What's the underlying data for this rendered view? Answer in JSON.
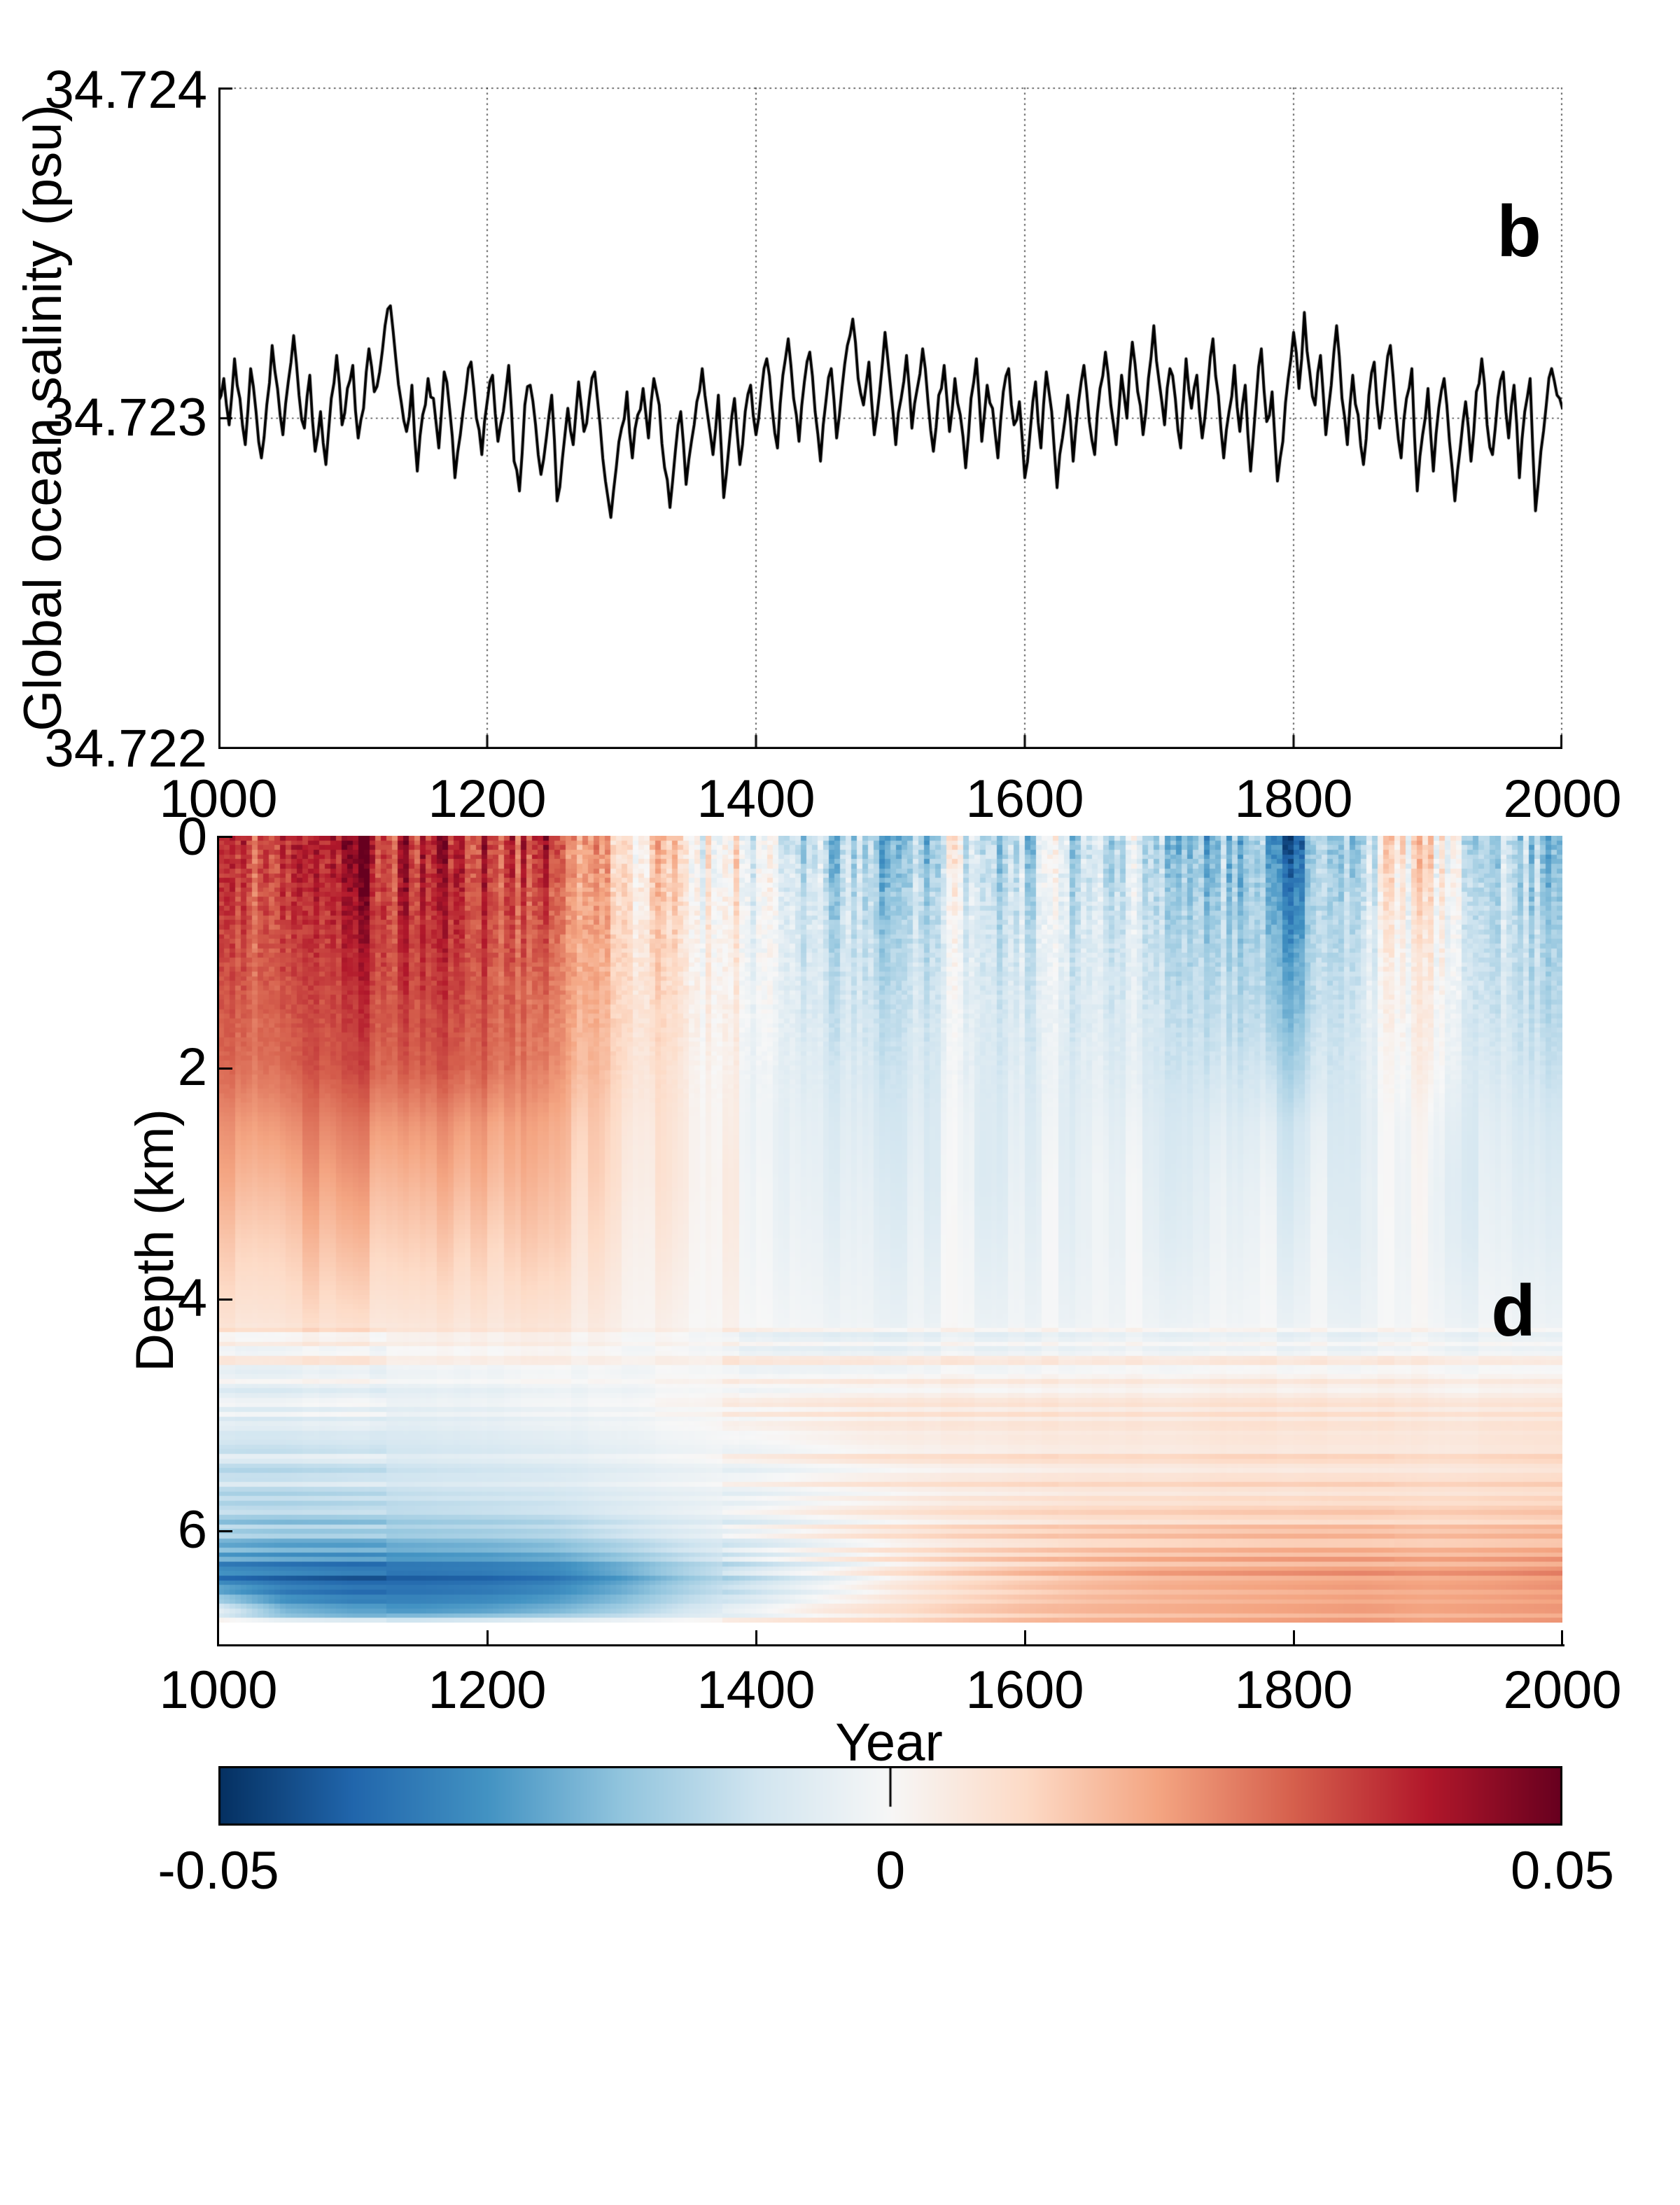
{
  "figure": {
    "background": "#ffffff"
  },
  "panel_b": {
    "label": "b",
    "ylabel": "Global ocean salinity (psu)",
    "yticklabels": [
      "34.724",
      "34.723",
      "34.722"
    ],
    "xticklabels": [
      "1000",
      "1200",
      "1400",
      "1600",
      "1800",
      "2000"
    ],
    "chart_data": {
      "type": "line",
      "title": "",
      "xlabel": "",
      "ylabel": "Global ocean salinity (psu)",
      "xlim": [
        1000,
        2000
      ],
      "ylim": [
        34.722,
        34.724
      ],
      "yticks": [
        34.722,
        34.723,
        34.724
      ],
      "xticks": [
        1000,
        1200,
        1400,
        1600,
        1800,
        2000
      ],
      "grid": "dotted",
      "line_color": "#000000",
      "mean_psu": 34.723,
      "x_start": 1000,
      "x_step": 4,
      "offset_unit_psu": 0.001,
      "values_offset": [
        0.05,
        0.12,
        -0.02,
        0.18,
        0.06,
        -0.08,
        0.15,
        0.02,
        -0.12,
        0.04,
        0.22,
        0.09,
        -0.05,
        0.11,
        0.25,
        0.07,
        -0.03,
        0.13,
        -0.1,
        0.02,
        -0.14,
        0.06,
        0.19,
        -0.02,
        0.09,
        0.16,
        -0.06,
        0.03,
        0.21,
        0.08,
        0.14,
        0.28,
        0.34,
        0.18,
        0.05,
        -0.04,
        0.1,
        -0.16,
        0.01,
        0.12,
        0.06,
        -0.09,
        0.14,
        0.03,
        -0.18,
        -0.05,
        0.08,
        0.17,
        0.0,
        -0.11,
        0.05,
        0.13,
        -0.07,
        0.02,
        0.16,
        -0.13,
        -0.22,
        0.04,
        0.1,
        -0.02,
        -0.17,
        -0.06,
        0.07,
        -0.25,
        -0.12,
        0.03,
        -0.08,
        0.11,
        -0.04,
        0.06,
        0.14,
        -0.02,
        -0.19,
        -0.3,
        -0.15,
        -0.03,
        0.08,
        -0.12,
        0.01,
        0.09,
        -0.06,
        0.12,
        0.04,
        -0.15,
        -0.27,
        -0.1,
        0.02,
        -0.2,
        -0.07,
        0.05,
        0.15,
        0.01,
        -0.11,
        0.07,
        -0.24,
        -0.08,
        0.06,
        -0.14,
        0.02,
        0.1,
        -0.05,
        0.08,
        0.18,
        0.03,
        -0.09,
        0.13,
        0.24,
        0.06,
        -0.07,
        0.11,
        0.2,
        0.02,
        -0.13,
        0.05,
        0.15,
        -0.06,
        0.09,
        0.22,
        0.3,
        0.12,
        0.04,
        0.17,
        -0.05,
        0.08,
        0.26,
        0.1,
        -0.08,
        0.06,
        0.19,
        -0.03,
        0.09,
        0.21,
        0.05,
        -0.1,
        0.07,
        0.16,
        -0.04,
        0.12,
        0.01,
        -0.15,
        0.06,
        0.18,
        -0.07,
        0.1,
        0.03,
        -0.12,
        0.08,
        0.15,
        -0.02,
        0.05,
        -0.18,
        -0.04,
        0.11,
        -0.09,
        0.14,
        0.02,
        -0.21,
        -0.06,
        0.07,
        -0.13,
        0.05,
        0.16,
        -0.01,
        -0.11,
        0.09,
        0.2,
        0.04,
        -0.08,
        0.13,
        0.0,
        0.23,
        0.08,
        -0.05,
        0.12,
        0.28,
        0.11,
        -0.02,
        0.15,
        0.06,
        -0.09,
        0.18,
        0.03,
        0.13,
        -0.06,
        0.09,
        0.24,
        0.07,
        -0.12,
        0.02,
        0.16,
        -0.04,
        0.1,
        -0.16,
        0.05,
        0.21,
        -0.01,
        0.08,
        -0.19,
        -0.07,
        0.12,
        0.26,
        0.09,
        0.32,
        0.14,
        0.04,
        0.19,
        -0.05,
        0.1,
        0.28,
        0.06,
        -0.08,
        0.13,
        0.01,
        -0.14,
        0.07,
        0.17,
        -0.03,
        0.11,
        0.22,
        0.02,
        -0.12,
        0.06,
        0.15,
        -0.22,
        -0.05,
        0.09,
        -0.16,
        0.03,
        0.12,
        -0.07,
        -0.25,
        -0.09,
        0.05,
        -0.13,
        0.08,
        0.18,
        -0.02,
        -0.11,
        0.06,
        0.14,
        -0.06,
        0.1,
        -0.18,
        0.02,
        0.12,
        -0.28,
        -0.1,
        0.04,
        0.15,
        0.07,
        0.03
      ]
    }
  },
  "panel_d": {
    "label": "d",
    "ylabel": "Depth (km)",
    "xlabel": "Year",
    "yticklabels": [
      "0",
      "2",
      "4",
      "6"
    ],
    "xticklabels": [
      "1000",
      "1200",
      "1400",
      "1600",
      "1800",
      "2000"
    ],
    "chart_data": {
      "type": "heatmap",
      "xlabel": "Year",
      "ylabel": "Depth (km)",
      "xlim": [
        1000,
        2000
      ],
      "ylim_km": [
        0,
        7.0
      ],
      "data_depth_max_km": 6.8,
      "yticks_km": [
        0,
        2,
        4,
        6
      ],
      "xticks": [
        1000,
        1200,
        1400,
        1600,
        1800,
        2000
      ],
      "value_range": [
        -0.05,
        0.05
      ],
      "colormap": "RdBu_reversed",
      "years": [
        1000,
        1050,
        1100,
        1150,
        1200,
        1250,
        1300,
        1350,
        1400,
        1450,
        1500,
        1550,
        1600,
        1650,
        1700,
        1750,
        1800,
        1850,
        1900,
        1950,
        2000
      ],
      "depths_km": [
        0.1,
        0.5,
        1.0,
        1.5,
        2.0,
        2.5,
        3.0,
        3.5,
        4.2,
        4.8,
        5.2,
        5.7,
        6.1,
        6.4,
        6.7,
        6.8
      ],
      "values": [
        [
          0.036,
          0.038,
          0.042,
          0.044,
          0.038,
          0.03,
          0.016,
          0.008,
          0.002,
          -0.012,
          -0.016,
          -0.006,
          -0.01,
          -0.008,
          -0.014,
          -0.02,
          -0.032,
          -0.006,
          0.008,
          -0.014,
          -0.016
        ],
        [
          0.034,
          0.036,
          0.04,
          0.042,
          0.036,
          0.028,
          0.015,
          0.007,
          0.002,
          -0.01,
          -0.014,
          -0.005,
          -0.009,
          -0.007,
          -0.012,
          -0.018,
          -0.028,
          -0.005,
          0.006,
          -0.012,
          -0.015
        ],
        [
          0.032,
          0.034,
          0.037,
          0.039,
          0.034,
          0.026,
          0.014,
          0.006,
          0.001,
          -0.009,
          -0.012,
          -0.005,
          -0.008,
          -0.006,
          -0.011,
          -0.015,
          -0.024,
          -0.005,
          0.004,
          -0.011,
          -0.013
        ],
        [
          0.03,
          0.032,
          0.034,
          0.036,
          0.032,
          0.024,
          0.013,
          0.006,
          0.001,
          -0.008,
          -0.01,
          -0.004,
          -0.007,
          -0.006,
          -0.009,
          -0.013,
          -0.02,
          -0.004,
          0.003,
          -0.01,
          -0.012
        ],
        [
          0.028,
          0.03,
          0.032,
          0.033,
          0.03,
          0.022,
          0.012,
          0.005,
          0.0,
          -0.006,
          -0.008,
          -0.004,
          -0.006,
          -0.005,
          -0.008,
          -0.01,
          -0.014,
          -0.004,
          0.002,
          -0.008,
          -0.01
        ],
        [
          0.022,
          0.024,
          0.025,
          0.025,
          0.022,
          0.017,
          0.01,
          0.005,
          0.0,
          -0.004,
          -0.006,
          -0.003,
          -0.005,
          -0.004,
          -0.006,
          -0.007,
          -0.008,
          -0.004,
          -0.001,
          -0.006,
          -0.007
        ],
        [
          0.018,
          0.019,
          0.02,
          0.02,
          0.018,
          0.014,
          0.009,
          0.005,
          0.001,
          -0.003,
          -0.004,
          -0.003,
          -0.004,
          -0.003,
          -0.005,
          -0.005,
          -0.006,
          -0.003,
          -0.002,
          -0.005,
          -0.005
        ],
        [
          0.013,
          0.014,
          0.015,
          0.015,
          0.013,
          0.011,
          0.007,
          0.004,
          0.001,
          -0.002,
          -0.003,
          -0.002,
          -0.003,
          -0.003,
          -0.004,
          -0.004,
          -0.004,
          -0.003,
          -0.002,
          -0.004,
          -0.004
        ],
        [
          0.007,
          0.008,
          0.008,
          0.008,
          0.007,
          0.006,
          0.004,
          0.002,
          0.001,
          -0.001,
          -0.002,
          -0.001,
          -0.002,
          -0.002,
          -0.002,
          -0.002,
          -0.002,
          -0.002,
          -0.001,
          -0.002,
          -0.002
        ],
        [
          -0.004,
          -0.004,
          -0.003,
          -0.003,
          -0.003,
          -0.002,
          -0.001,
          0.001,
          0.002,
          0.003,
          0.004,
          0.004,
          0.004,
          0.004,
          0.004,
          0.005,
          0.005,
          0.005,
          0.004,
          0.004,
          0.005
        ],
        [
          -0.008,
          -0.008,
          -0.007,
          -0.007,
          -0.006,
          -0.005,
          -0.003,
          -0.001,
          0.001,
          0.003,
          0.005,
          0.005,
          0.006,
          0.006,
          0.006,
          0.007,
          0.007,
          0.007,
          0.006,
          0.007,
          0.008
        ],
        [
          -0.012,
          -0.012,
          -0.011,
          -0.01,
          -0.009,
          -0.008,
          -0.005,
          -0.003,
          -0.001,
          0.002,
          0.004,
          0.006,
          0.007,
          0.008,
          0.008,
          0.009,
          0.009,
          0.01,
          0.009,
          0.01,
          0.011
        ],
        [
          -0.02,
          -0.022,
          -0.022,
          -0.021,
          -0.02,
          -0.018,
          -0.013,
          -0.008,
          -0.004,
          0.001,
          0.005,
          0.008,
          0.01,
          0.012,
          0.013,
          0.014,
          0.015,
          0.015,
          0.014,
          0.015,
          0.016
        ],
        [
          -0.036,
          -0.038,
          -0.04,
          -0.04,
          -0.039,
          -0.036,
          -0.028,
          -0.018,
          -0.01,
          -0.003,
          0.005,
          0.01,
          0.014,
          0.017,
          0.019,
          0.02,
          0.021,
          0.022,
          0.021,
          0.022,
          0.024
        ],
        [
          -0.008,
          -0.026,
          -0.03,
          -0.03,
          -0.028,
          -0.024,
          -0.018,
          -0.01,
          -0.005,
          0.002,
          0.006,
          0.01,
          0.013,
          0.015,
          0.016,
          0.017,
          0.018,
          0.019,
          0.018,
          0.019,
          0.02
        ],
        [
          -0.002,
          -0.006,
          -0.008,
          -0.008,
          -0.006,
          -0.004,
          -0.002,
          0.0,
          0.002,
          0.004,
          0.006,
          0.009,
          0.012,
          0.014,
          0.015,
          0.016,
          0.017,
          0.018,
          0.017,
          0.018,
          0.019
        ]
      ],
      "texture": {
        "stripe_amp": 0.017,
        "stripe_depth_fade_km": 2.4,
        "mid_ghost_amp": 0.0038,
        "band_amp": 0.0062,
        "band_depth_start_km": 4.25
      }
    }
  },
  "colorbar": {
    "ticklabels": [
      "-0.05",
      "0",
      "0.05"
    ],
    "min": -0.05,
    "max": 0.05,
    "stops": [
      "#053061",
      "#2166ac",
      "#4393c3",
      "#92c5de",
      "#d1e5f0",
      "#f7f7f7",
      "#fddbc7",
      "#f4a582",
      "#d6604d",
      "#b2182b",
      "#67001f"
    ]
  }
}
